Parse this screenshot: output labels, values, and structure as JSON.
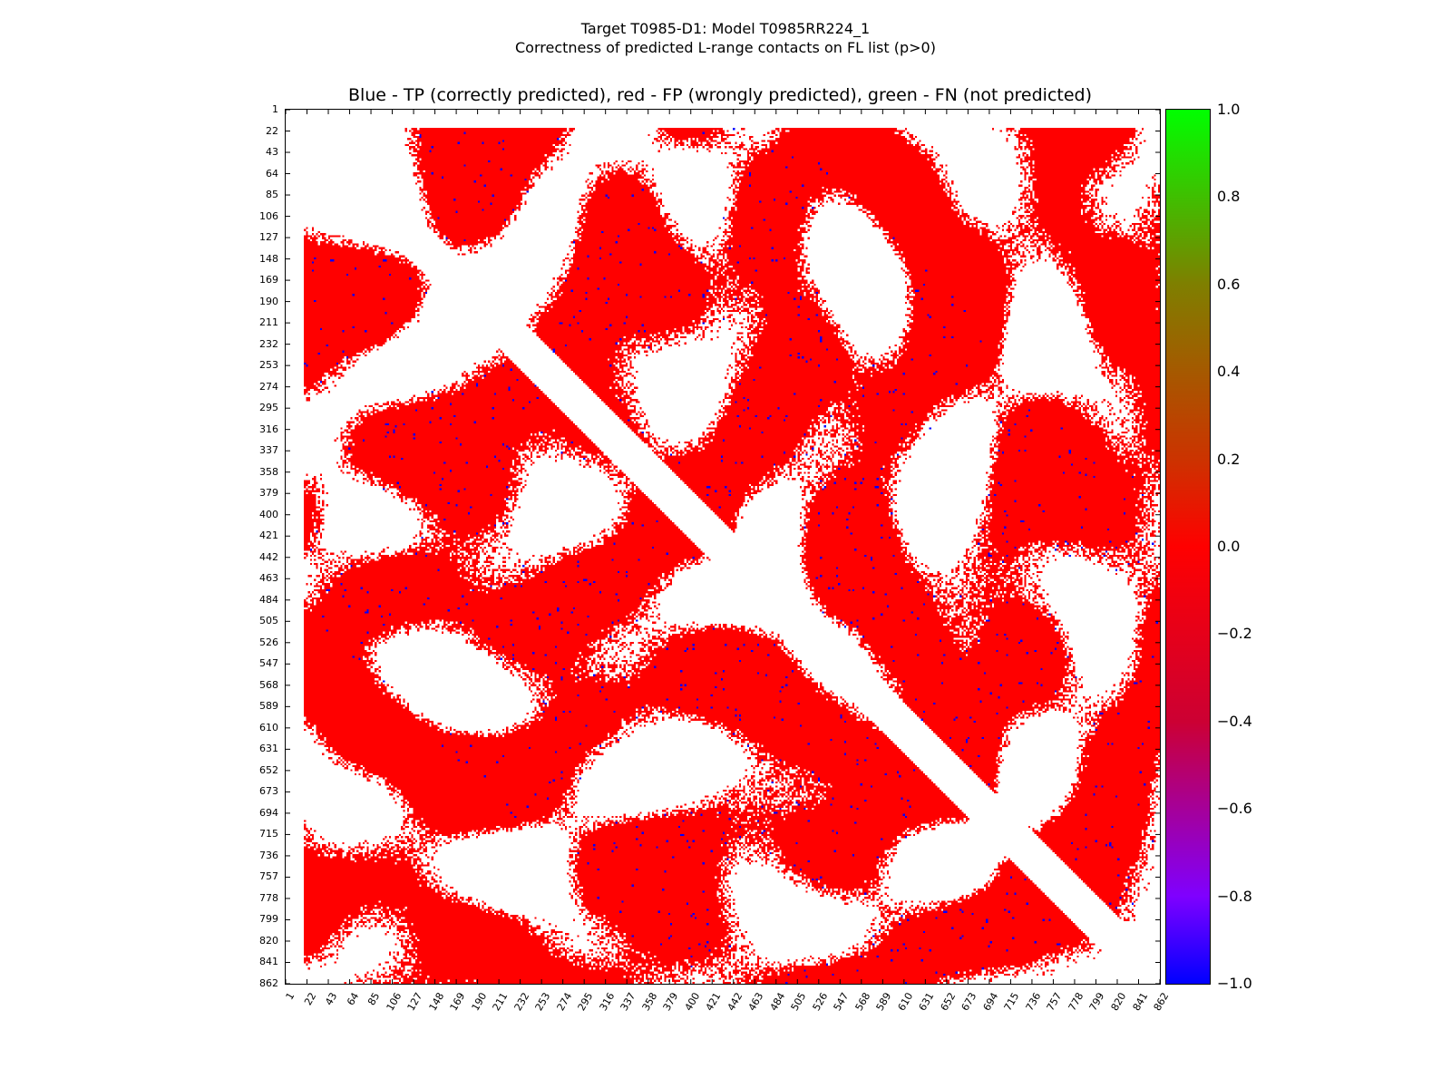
{
  "title": "Target T0985-D1: Model T0985RR224_1",
  "subtitle": "Correctness of predicted L-range contacts on FL list (p>0)",
  "plot_title": "Blue - TP (correctly predicted), red - FP (wrongly predicted), green - FN (not predicted)",
  "colors": {
    "tp": "#0000ff",
    "fp": "#ff0000",
    "fn": "#00ff00",
    "background": "#ffffff"
  },
  "chart_data": {
    "type": "heatmap",
    "x_ticks": [
      "1",
      "22",
      "43",
      "64",
      "85",
      "106",
      "127",
      "148",
      "169",
      "190",
      "211",
      "232",
      "253",
      "274",
      "295",
      "316",
      "337",
      "358",
      "379",
      "400",
      "421",
      "442",
      "463",
      "484",
      "505",
      "526",
      "547",
      "568",
      "589",
      "610",
      "631",
      "652",
      "673",
      "694",
      "715",
      "736",
      "757",
      "778",
      "799",
      "820",
      "841",
      "862"
    ],
    "y_ticks": [
      "1",
      "22",
      "43",
      "64",
      "85",
      "106",
      "127",
      "148",
      "169",
      "190",
      "211",
      "232",
      "253",
      "274",
      "295",
      "316",
      "337",
      "358",
      "379",
      "400",
      "421",
      "442",
      "463",
      "484",
      "505",
      "526",
      "547",
      "568",
      "589",
      "610",
      "631",
      "652",
      "673",
      "694",
      "715",
      "736",
      "757",
      "778",
      "799",
      "820",
      "841",
      "862"
    ],
    "xlim": [
      1,
      862
    ],
    "ylim": [
      862,
      1
    ],
    "colorbar": {
      "vmin": -1.0,
      "vmax": 1.0,
      "tick_labels": [
        "1.0",
        "0.8",
        "0.6",
        "0.4",
        "0.2",
        "0.0",
        "−0.2",
        "−0.4",
        "−0.6",
        "−0.8",
        "−1.0"
      ],
      "tick_values": [
        1.0,
        0.8,
        0.6,
        0.4,
        0.2,
        0.0,
        -0.2,
        -0.4,
        -0.6,
        -0.8,
        -1.0
      ]
    },
    "legend": {
      "tp": -1.0,
      "fp": 0.0,
      "fn": 1.0
    },
    "diagonal_band_min_separation": 24
  }
}
